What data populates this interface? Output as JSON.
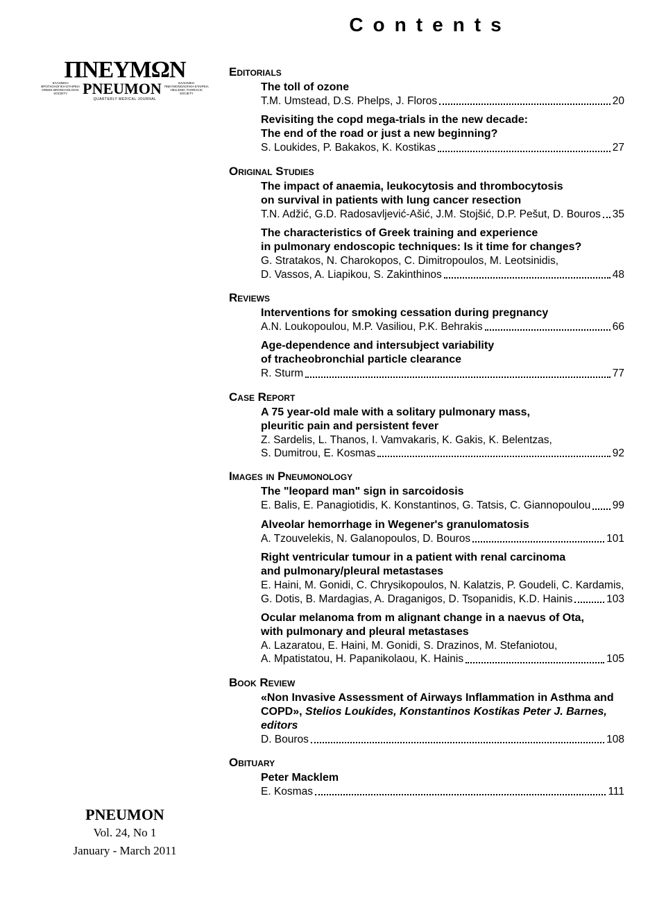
{
  "page_title": "Contents",
  "logo": {
    "greek": "ΠΝΕΥΜΩΝ",
    "left_label": "ΕΛΛΗΝΙΚΗ\nΒΡΟΓΧΟΛΟΓΙΚΗ ΕΤΑΙΡΕΙΑ\nGREEK BRONCHOLOGIC\nSOCIETY",
    "latin": "PNEUMON",
    "right_label": "ΕΛΛΗΝΙΚΗ\nΠΝΕΥΜΟΝΟΛΟΓΙΚΗ ΕΤΑΙΡΕΙΑ\nHELLENIC THORACIC\nSOCIETY",
    "bottom": "QUARTERLY MEDICAL JOURNAL"
  },
  "sections": [
    {
      "heading": "Editorials",
      "entries": [
        {
          "title_lines": [
            "The toll of ozone"
          ],
          "tail_authors": "T.M. Umstead, D.S. Phelps, J. Floros",
          "page": "20"
        },
        {
          "title_lines": [
            "Revisiting the copd mega-trials in the new decade:",
            "The end of the road or just a new beginning?"
          ],
          "tail_authors": "S. Loukides, P. Bakakos, K. Kostikas",
          "page": "27"
        }
      ]
    },
    {
      "heading": "Original Studies",
      "entries": [
        {
          "title_lines": [
            "The impact of anaemia, leukocytosis and thrombocytosis",
            "on survival in patients with lung cancer resection"
          ],
          "tail_authors": "T.N. Adžić, G.D. Radosavljević-Ašić, J.M. Stojšić, D.P. Pešut, D. Bouros",
          "page": "35"
        },
        {
          "title_lines": [
            "The characteristics of Greek training and experience",
            "in pulmonary endoscopic techniques: Is it time for changes?"
          ],
          "author_lines": [
            "G. Stratakos, N. Charokopos, C. Dimitropoulos, M. Leotsinidis,"
          ],
          "tail_authors": "D. Vassos, A. Liapikou, S. Zakinthinos",
          "page": "48"
        }
      ]
    },
    {
      "heading": "Reviews",
      "entries": [
        {
          "title_lines": [
            "Interventions for smoking cessation during pregnancy"
          ],
          "tail_authors": "A.N. Loukopoulou, M.P. Vasiliou, P.K. Behrakis",
          "page": "66"
        },
        {
          "title_lines": [
            "Age-dependence and intersubject variability",
            "of tracheobronchial particle clearance"
          ],
          "tail_authors": "R. Sturm",
          "page": "77"
        }
      ]
    },
    {
      "heading": "Case Report",
      "entries": [
        {
          "title_lines": [
            "A 75 year-old male with a solitary pulmonary mass,",
            "pleuritic pain and persistent fever"
          ],
          "author_lines": [
            "Z. Sardelis, L. Thanos, I. Vamvakaris, K. Gakis, K. Belentzas,"
          ],
          "tail_authors": "S. Dumitrou, E. Kosmas",
          "page": "92"
        }
      ]
    },
    {
      "heading": "Images in Pneumonology",
      "entries": [
        {
          "title_lines": [
            "The \"leopard man\" sign in sarcoidosis"
          ],
          "tail_authors": "E. Balis, E. Panagiotidis, K. Konstantinos, G. Tatsis, C. Giannopoulou",
          "page": "99"
        },
        {
          "title_lines": [
            "Alveolar hemorrhage in Wegener's granulomatosis"
          ],
          "tail_authors": "A. Tzouvelekis, N. Galanopoulos, D. Bouros",
          "page": "101"
        },
        {
          "title_lines": [
            "Right ventricular tumour in a patient with renal carcinoma",
            "and pulmonary/pleural metastases"
          ],
          "author_lines": [
            "E. Haini, M. Gonidi, C. Chrysikopoulos, N. Kalatzis, P. Goudeli, C. Kardamis,"
          ],
          "tail_authors": "G. Dotis, B. Mardagias, A. Draganigos, D. Tsopanidis, K.D. Hainis",
          "page": "103"
        },
        {
          "title_lines": [
            "Ocular melanoma from m alignant change in a naevus of Ota,",
            "with pulmonary and pleural metastases"
          ],
          "author_lines": [
            "A. Lazaratou, E. Haini, M. Gonidi, S. Drazinos, M. Stefaniotou,"
          ],
          "tail_authors": "A. Mpatistatou, H. Papanikolaou, K. Hainis",
          "page": "105"
        }
      ]
    },
    {
      "heading": "Book Review",
      "entries": [
        {
          "title_lines": [
            "«Non Invasive Assessment of Airways Inflammation in Asthma and"
          ],
          "italic_title_line": "COPD», Stelios Loukides, Konstantinos Kostikas Peter J. Barnes, editors",
          "tail_authors": "D. Bouros",
          "page": "108"
        }
      ]
    },
    {
      "heading": "Obituary",
      "entries": [
        {
          "title_lines": [
            "Peter Macklem"
          ],
          "tail_authors": "E. Kosmas",
          "page": "111"
        }
      ]
    }
  ],
  "footer": {
    "journal": "PNEUMON",
    "vol": "Vol. 24, No 1",
    "date": "January - March 2011"
  }
}
